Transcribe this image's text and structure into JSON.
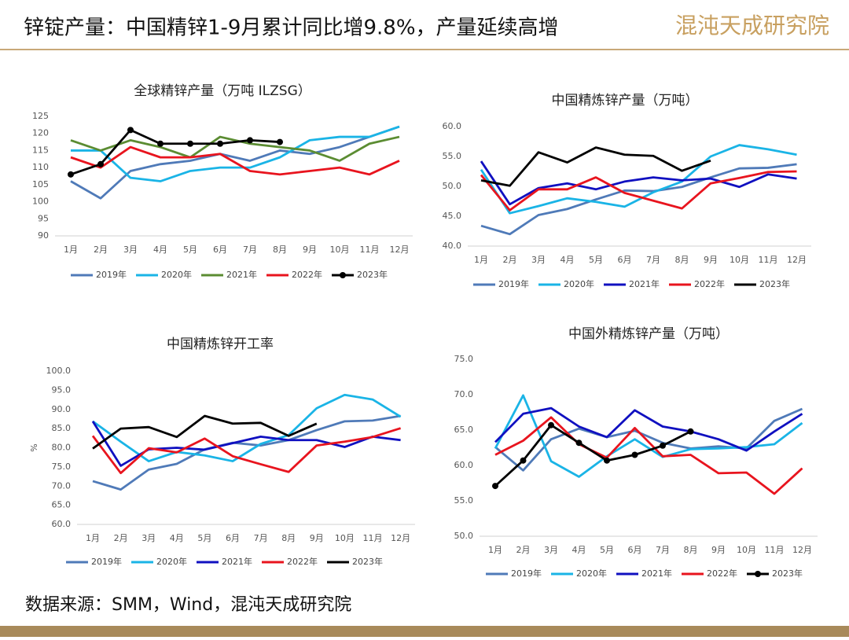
{
  "header": {
    "title": "锌锭产量：中国精锌1-9月累计同比增9.8%，产量延续高增",
    "logo": "混沌天成研究院"
  },
  "source": "数据来源：SMM，Wind，混沌天成研究院",
  "chart_data": [
    {
      "type": "line",
      "title": "全球精锌产量（万吨 ILZSG）",
      "categories": [
        "1月",
        "2月",
        "3月",
        "4月",
        "5月",
        "6月",
        "7月",
        "8月",
        "9月",
        "10月",
        "11月",
        "12月"
      ],
      "ylim": [
        90,
        125
      ],
      "yticks": [
        90,
        95,
        100,
        105,
        110,
        115,
        120,
        125
      ],
      "series": [
        {
          "name": "2019年",
          "color": "#4f7ab8",
          "values": [
            106,
            101,
            109,
            111,
            112,
            114,
            112,
            115,
            114,
            116,
            119,
            122
          ]
        },
        {
          "name": "2020年",
          "color": "#1ab4e6",
          "values": [
            115,
            115,
            107,
            106,
            109,
            110,
            110,
            113,
            118,
            119,
            119,
            122
          ]
        },
        {
          "name": "2021年",
          "color": "#5b8c32",
          "values": [
            118,
            115,
            118,
            116,
            113,
            119,
            117,
            116,
            115,
            112,
            117,
            119
          ]
        },
        {
          "name": "2022年",
          "color": "#e8141e",
          "values": [
            113,
            110,
            116,
            113,
            113,
            114,
            109,
            108,
            109,
            110,
            108,
            112
          ]
        },
        {
          "name": "2023年",
          "color": "#000000",
          "marker": "circle",
          "values": [
            108,
            111,
            121,
            117,
            117,
            117,
            118,
            117.5,
            null,
            null,
            null,
            null
          ]
        }
      ]
    },
    {
      "type": "line",
      "title": "中国精炼锌产量（万吨）",
      "categories": [
        "1月",
        "2月",
        "3月",
        "4月",
        "5月",
        "6月",
        "7月",
        "8月",
        "9月",
        "10月",
        "11月",
        "12月"
      ],
      "ylim": [
        40,
        60
      ],
      "yticks": [
        {
          "value": 40,
          "label": "40.0"
        },
        {
          "value": 45,
          "label": "45.0"
        },
        {
          "value": 50,
          "label": "50.0"
        },
        {
          "value": 55,
          "label": "55.0"
        },
        {
          "value": 60,
          "label": "60.0"
        }
      ],
      "series": [
        {
          "name": "2019年",
          "color": "#4f7ab8",
          "values": [
            43.4,
            42,
            45.2,
            46.2,
            47.8,
            49.3,
            49.2,
            49.9,
            51.5,
            53,
            53.1,
            53.7
          ]
        },
        {
          "name": "2020年",
          "color": "#1ab4e6",
          "values": [
            52.8,
            45.5,
            46.7,
            48,
            47.4,
            46.6,
            49,
            50.8,
            55,
            56.9,
            56.2,
            55.3
          ]
        },
        {
          "name": "2021年",
          "color": "#1010c0",
          "values": [
            54.2,
            47,
            49.7,
            50.5,
            49.5,
            50.8,
            51.5,
            51,
            51.3,
            49.9,
            52,
            51.3
          ]
        },
        {
          "name": "2022年",
          "color": "#e8141e",
          "values": [
            51.9,
            46,
            49.5,
            49.5,
            51.5,
            48.9,
            47.6,
            46.3,
            50.5,
            51.4,
            52.4,
            52.5
          ]
        },
        {
          "name": "2023年",
          "color": "#000000",
          "values": [
            51,
            50.1,
            55.7,
            54,
            56.5,
            55.3,
            55.1,
            52.6,
            54.3,
            null,
            null,
            null
          ]
        }
      ]
    },
    {
      "type": "line",
      "title": "中国精炼锌开工率",
      "y_label": "%",
      "categories": [
        "1月",
        "2月",
        "3月",
        "4月",
        "5月",
        "6月",
        "7月",
        "8月",
        "9月",
        "10月",
        "11月",
        "12月"
      ],
      "ylim": [
        60,
        100
      ],
      "yticks": [
        {
          "value": 60,
          "label": "60.0"
        },
        {
          "value": 65,
          "label": "65.0"
        },
        {
          "value": 70,
          "label": "70.0"
        },
        {
          "value": 75,
          "label": "75.0"
        },
        {
          "value": 80,
          "label": "80.0"
        },
        {
          "value": 85,
          "label": "85.0"
        },
        {
          "value": 90,
          "label": "90.0"
        },
        {
          "value": 95,
          "label": "95.0"
        },
        {
          "value": 100,
          "label": "100.0"
        }
      ],
      "series": [
        {
          "name": "2019年",
          "color": "#4f7ab8",
          "values": [
            71.3,
            69.1,
            74.3,
            75.8,
            79.6,
            81.3,
            80.6,
            82,
            84.6,
            86.9,
            87.1,
            88.3
          ]
        },
        {
          "name": "2020年",
          "color": "#1ab4e6",
          "values": [
            86.9,
            81.6,
            76.5,
            78.9,
            78,
            76.5,
            81,
            83.3,
            90.3,
            93.8,
            92.6,
            88.1
          ]
        },
        {
          "name": "2021年",
          "color": "#1010c0",
          "values": [
            86.9,
            75.3,
            79.6,
            80,
            79.5,
            81.2,
            82.9,
            82,
            82,
            80.2,
            82.9,
            82
          ]
        },
        {
          "name": "2022年",
          "color": "#e8141e",
          "values": [
            83.1,
            73.4,
            79.9,
            78.8,
            82.4,
            77.8,
            75.7,
            73.7,
            80.6,
            81.6,
            82.8,
            85.1
          ]
        },
        {
          "name": "2023年",
          "color": "#000000",
          "values": [
            79.8,
            85,
            85.4,
            82.8,
            88.3,
            86.3,
            86.5,
            83.1,
            86.3,
            null,
            null,
            null
          ]
        }
      ]
    },
    {
      "type": "line",
      "title": "中国外精炼锌产量（万吨）",
      "categories": [
        "1月",
        "2月",
        "3月",
        "4月",
        "5月",
        "6月",
        "7月",
        "8月",
        "9月",
        "10月",
        "11月",
        "12月"
      ],
      "ylim": [
        50,
        75
      ],
      "yticks": [
        {
          "value": 50,
          "label": "50.0"
        },
        {
          "value": 55,
          "label": "55.0"
        },
        {
          "value": 60,
          "label": "60.0"
        },
        {
          "value": 65,
          "label": "65.0"
        },
        {
          "value": 70,
          "label": "70.0"
        },
        {
          "value": 75,
          "label": "75.0"
        }
      ],
      "series": [
        {
          "name": "2019年",
          "color": "#4f7ab8",
          "values": [
            62.6,
            59.3,
            63.7,
            65.2,
            64,
            64.9,
            63.2,
            62.4,
            62.7,
            62.4,
            66.3,
            68
          ]
        },
        {
          "name": "2020年",
          "color": "#1ab4e6",
          "values": [
            62.4,
            69.9,
            60.6,
            58.4,
            61.3,
            63.7,
            61.2,
            62.3,
            62.4,
            62.6,
            63,
            66
          ]
        },
        {
          "name": "2021年",
          "color": "#1010c0",
          "values": [
            63.3,
            67.3,
            68.1,
            65.5,
            64,
            67.8,
            65.5,
            64.8,
            63.7,
            62.1,
            64.8,
            67.3
          ]
        },
        {
          "name": "2022年",
          "color": "#e8141e",
          "values": [
            61.5,
            63.5,
            66.8,
            63,
            61.1,
            65.3,
            61.3,
            61.5,
            58.9,
            59,
            56,
            59.6
          ]
        },
        {
          "name": "2023年",
          "color": "#000000",
          "marker": "circle",
          "values": [
            57.1,
            60.7,
            65.7,
            63.2,
            60.7,
            61.5,
            62.8,
            64.8,
            null,
            null,
            null,
            null
          ]
        }
      ]
    }
  ]
}
